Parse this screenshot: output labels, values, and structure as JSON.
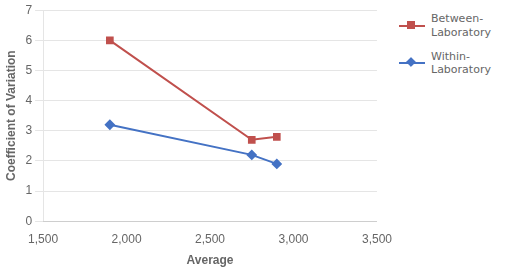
{
  "chart_data": {
    "type": "line",
    "xlabel": "Average",
    "ylabel": "Coefficient of Variation",
    "x": [
      1900,
      2750,
      2900
    ],
    "series": [
      {
        "name": "Between-\nLaboratory",
        "color": "#C0504D",
        "marker": "square",
        "values": [
          6.0,
          2.7,
          2.8
        ]
      },
      {
        "name": "Within-\nLaboratory",
        "color": "#4472C4",
        "marker": "diamond",
        "values": [
          3.2,
          2.2,
          1.9
        ]
      }
    ],
    "xlim": [
      1500,
      3500
    ],
    "ylim": [
      0,
      7
    ],
    "xticks": [
      1500,
      2000,
      2500,
      3000,
      3500
    ],
    "yticks": [
      0,
      1,
      2,
      3,
      4,
      5,
      6,
      7
    ],
    "grid": "y",
    "legend": "upper right"
  }
}
